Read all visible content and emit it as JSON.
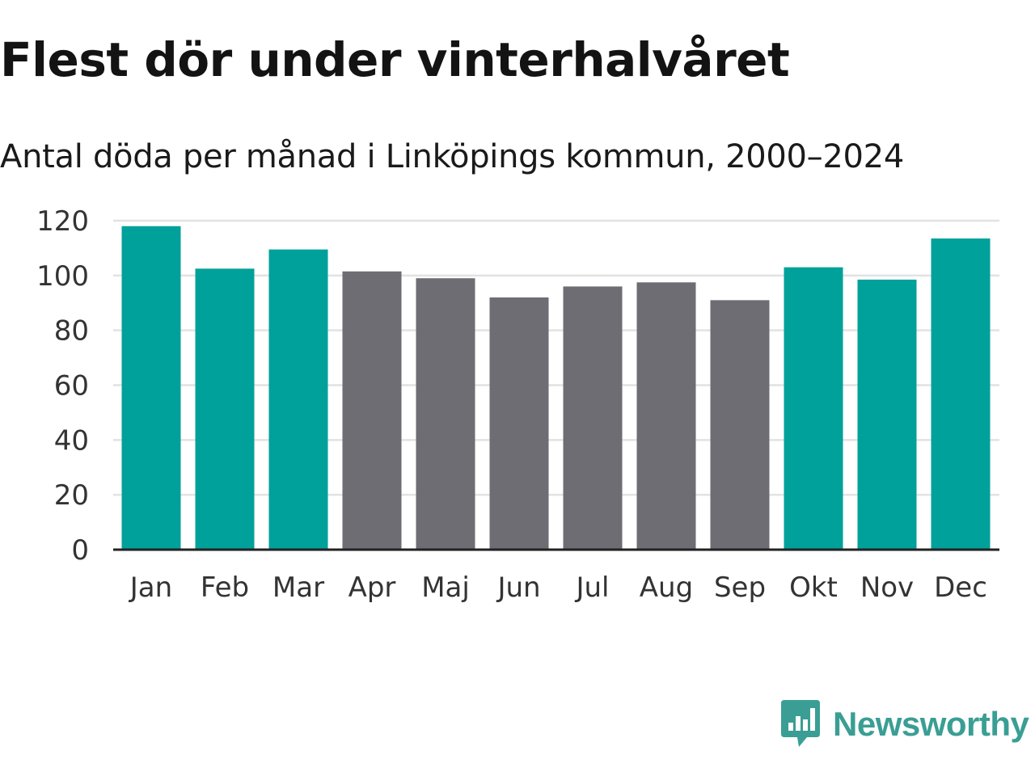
{
  "chart_data": {
    "type": "bar",
    "title": "Flest dör under vinterhalvåret",
    "subtitle": "Antal döda per månad i Linköpings kommun, 2000–2024",
    "categories": [
      "Jan",
      "Feb",
      "Mar",
      "Apr",
      "Maj",
      "Jun",
      "Jul",
      "Aug",
      "Sep",
      "Okt",
      "Nov",
      "Dec"
    ],
    "values": [
      118,
      102.5,
      109.5,
      101.5,
      99,
      92,
      96,
      97.5,
      91,
      103,
      98.5,
      113.5
    ],
    "highlight": [
      true,
      true,
      true,
      false,
      false,
      false,
      false,
      false,
      false,
      true,
      true,
      true
    ],
    "ylim": [
      0,
      120
    ],
    "yticks": [
      0,
      20,
      40,
      60,
      80,
      100,
      120
    ],
    "xlabel": "",
    "ylabel": "",
    "grid": true,
    "colors": {
      "highlight": "#00a19a",
      "base": "#6e6d73",
      "grid": "#e2e2e2",
      "axis": "#222222"
    }
  },
  "brand": {
    "name": "Newsworthy",
    "icon": "newsworthy-logo-icon",
    "color": "#3a9e94"
  }
}
